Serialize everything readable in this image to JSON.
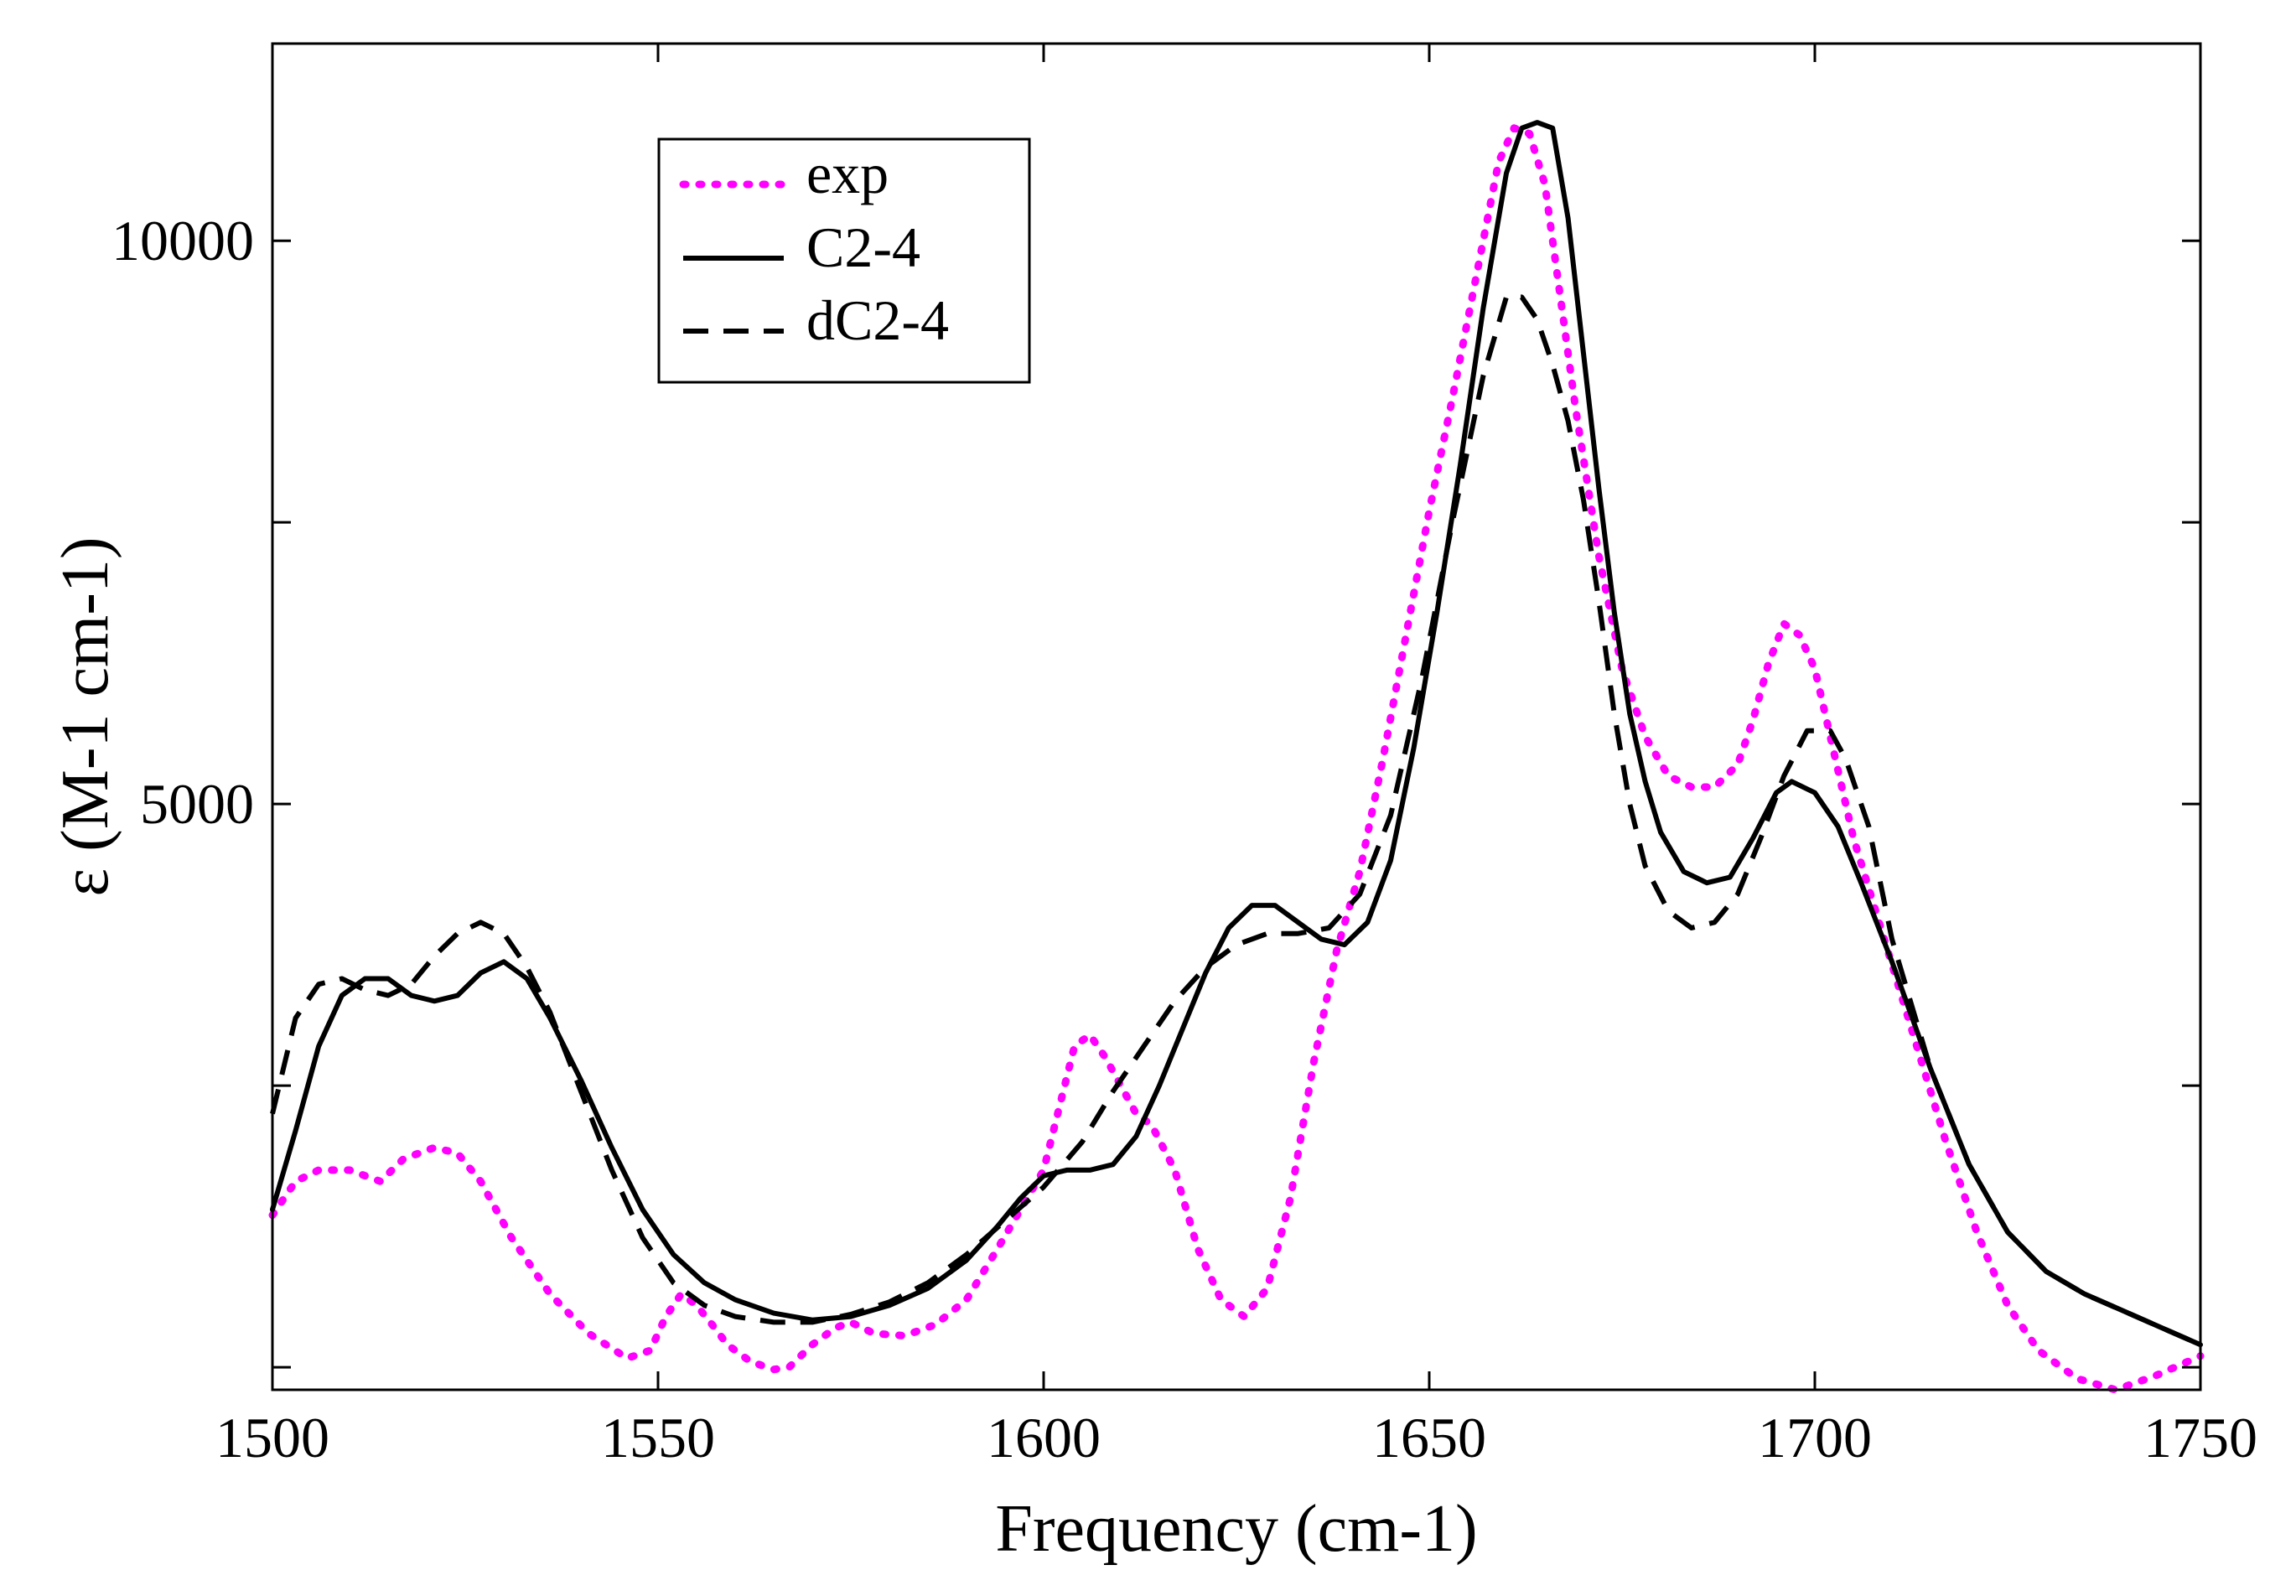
{
  "chart_data": {
    "type": "line",
    "title": "",
    "xlabel": "Frequency (cm-1)",
    "ylabel": "ε (M-1  cm-1)",
    "xlim": [
      1500,
      1750
    ],
    "ylim": [
      -200,
      11750
    ],
    "x_ticks": [
      1500,
      1550,
      1600,
      1650,
      1700,
      1750
    ],
    "x_tick_labels": [
      "1500",
      "1550",
      "1600",
      "1650",
      "1700",
      "1750"
    ],
    "y_ticks": [
      0,
      2500,
      5000,
      7500,
      10000
    ],
    "y_tick_labels": [
      "",
      "",
      "5000",
      "",
      "10000"
    ],
    "grid": false,
    "legend_position": "top-left",
    "series": [
      {
        "name": "exp",
        "style": "dotted",
        "color": "#ff00ff",
        "x": [
          1500,
          1503,
          1506,
          1510,
          1514,
          1517,
          1521,
          1524,
          1527,
          1531,
          1536,
          1541,
          1546,
          1549,
          1551,
          1553,
          1555,
          1557,
          1559,
          1562,
          1565,
          1567,
          1570,
          1573,
          1575,
          1578,
          1582,
          1586,
          1590,
          1594,
          1597,
          1600,
          1602,
          1604,
          1606,
          1608,
          1610,
          1612,
          1614,
          1617,
          1620,
          1623,
          1626,
          1629,
          1632,
          1635,
          1638,
          1641,
          1644,
          1647,
          1650,
          1653,
          1656,
          1659,
          1661,
          1663,
          1665,
          1667,
          1669,
          1672,
          1675,
          1678,
          1681,
          1684,
          1687,
          1690,
          1692,
          1694,
          1696,
          1698,
          1700,
          1702,
          1705,
          1709,
          1713,
          1717,
          1721,
          1725,
          1729,
          1734,
          1739,
          1744,
          1750
        ],
        "values": [
          1350,
          1650,
          1750,
          1750,
          1650,
          1850,
          1950,
          1900,
          1650,
          1150,
          650,
          300,
          80,
          150,
          450,
          650,
          550,
          380,
          200,
          50,
          -20,
          0,
          200,
          350,
          400,
          300,
          280,
          380,
          600,
          1050,
          1400,
          1750,
          2300,
          2850,
          2950,
          2750,
          2500,
          2250,
          2150,
          1750,
          1050,
          600,
          450,
          700,
          1500,
          2700,
          3700,
          4400,
          5400,
          6500,
          7600,
          8600,
          9650,
          10700,
          11000,
          10950,
          10500,
          9500,
          8500,
          7200,
          6200,
          5600,
          5250,
          5150,
          5150,
          5350,
          5750,
          6250,
          6600,
          6500,
          6200,
          5600,
          4700,
          3800,
          2900,
          2000,
          1200,
          550,
          150,
          -100,
          -200,
          -80,
          100
        ]
      },
      {
        "name": "C2-4",
        "style": "solid",
        "color": "#000000",
        "x": [
          1500,
          1503,
          1506,
          1509,
          1512,
          1515,
          1518,
          1521,
          1524,
          1527,
          1530,
          1533,
          1536,
          1540,
          1544,
          1548,
          1552,
          1556,
          1560,
          1565,
          1570,
          1575,
          1580,
          1585,
          1590,
          1594,
          1597,
          1600,
          1603,
          1606,
          1609,
          1612,
          1615,
          1618,
          1621,
          1624,
          1627,
          1630,
          1633,
          1636,
          1639,
          1642,
          1645,
          1648,
          1651,
          1654,
          1657,
          1660,
          1662,
          1664,
          1666,
          1668,
          1670,
          1672,
          1674,
          1676,
          1678,
          1680,
          1683,
          1686,
          1689,
          1692,
          1695,
          1697,
          1700,
          1703,
          1706,
          1710,
          1715,
          1720,
          1725,
          1730,
          1735,
          1740,
          1745,
          1750
        ],
        "values": [
          1400,
          2100,
          2850,
          3300,
          3450,
          3450,
          3300,
          3250,
          3300,
          3500,
          3600,
          3450,
          3100,
          2550,
          1950,
          1400,
          1000,
          750,
          600,
          480,
          420,
          450,
          550,
          700,
          950,
          1250,
          1500,
          1700,
          1750,
          1750,
          1800,
          2050,
          2500,
          3000,
          3500,
          3900,
          4100,
          4100,
          3950,
          3800,
          3750,
          3950,
          4500,
          5500,
          6700,
          8000,
          9400,
          10600,
          11000,
          11050,
          11000,
          10200,
          9000,
          7800,
          6700,
          5800,
          5200,
          4750,
          4400,
          4300,
          4350,
          4700,
          5100,
          5200,
          5100,
          4800,
          4300,
          3600,
          2650,
          1800,
          1200,
          850,
          650,
          500,
          350,
          200
        ]
      },
      {
        "name": "dC2-4",
        "style": "dashed",
        "color": "#000000",
        "x": [
          1500,
          1503,
          1506,
          1509,
          1512,
          1515,
          1518,
          1521,
          1524,
          1527,
          1530,
          1533,
          1536,
          1540,
          1544,
          1548,
          1552,
          1556,
          1560,
          1565,
          1570,
          1575,
          1580,
          1585,
          1590,
          1595,
          1600,
          1605,
          1609,
          1613,
          1617,
          1621,
          1625,
          1629,
          1633,
          1637,
          1641,
          1645,
          1649,
          1653,
          1657,
          1660,
          1662,
          1664,
          1666,
          1668,
          1670,
          1672,
          1674,
          1676,
          1678,
          1681,
          1684,
          1687,
          1690,
          1693,
          1696,
          1699,
          1702,
          1704,
          1707,
          1710,
          1715,
          1720,
          1725,
          1730,
          1735,
          1740,
          1745,
          1750
        ],
        "values": [
          2250,
          3100,
          3400,
          3450,
          3350,
          3300,
          3400,
          3650,
          3850,
          3950,
          3850,
          3550,
          3150,
          2450,
          1750,
          1150,
          750,
          550,
          450,
          400,
          400,
          470,
          580,
          750,
          1000,
          1300,
          1600,
          2000,
          2450,
          2850,
          3250,
          3550,
          3750,
          3850,
          3850,
          3900,
          4200,
          4900,
          6100,
          7500,
          8800,
          9500,
          9500,
          9300,
          8900,
          8400,
          7700,
          6800,
          5800,
          5000,
          4450,
          4050,
          3900,
          3950,
          4200,
          4700,
          5250,
          5650,
          5650,
          5400,
          4800,
          3800,
          2650,
          1800,
          1200,
          850,
          650,
          500,
          350,
          200
        ]
      }
    ]
  }
}
